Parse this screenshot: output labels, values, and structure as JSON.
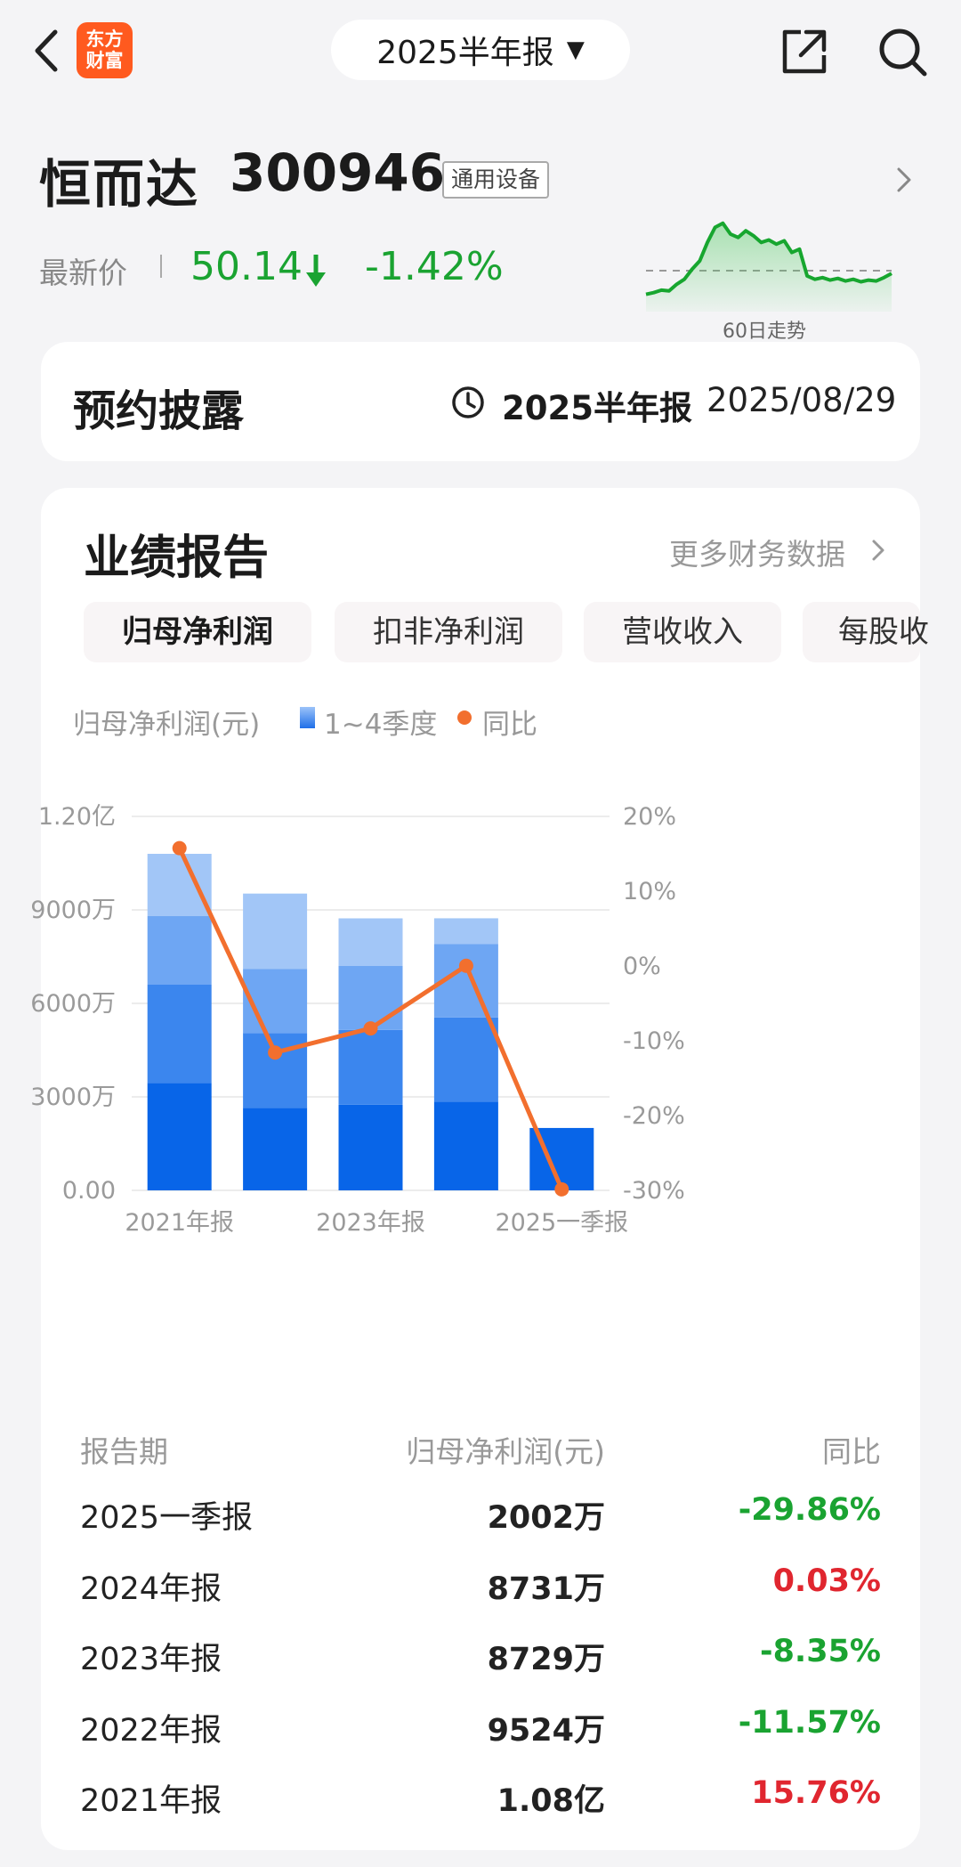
{
  "topbar": {
    "logo_text": "东方\n财富",
    "logo_line1": "东方",
    "logo_line2": "财富",
    "period_selector": "2025半年报",
    "caret": "▼"
  },
  "stock": {
    "name": "恒而达",
    "code": "300946",
    "industry": "通用设备",
    "price_label": "最新价",
    "price": "50.14",
    "change": "-1.42%",
    "sparkline_label": "60日走势",
    "sparkline_trend": [
      0.1,
      0.12,
      0.15,
      0.14,
      0.22,
      0.28,
      0.4,
      0.5,
      0.72,
      0.9,
      0.95,
      0.82,
      0.78,
      0.86,
      0.8,
      0.72,
      0.75,
      0.7,
      0.74,
      0.6,
      0.64,
      0.32,
      0.28,
      0.3,
      0.27,
      0.29,
      0.26,
      0.28,
      0.25,
      0.27,
      0.26,
      0.3,
      0.35
    ]
  },
  "disclosure": {
    "title": "预约披露",
    "period": "2025半年报",
    "date": "2025/08/29"
  },
  "performance": {
    "title": "业绩报告",
    "more_link": "更多财务数据",
    "tabs": [
      {
        "label": "归母净利润",
        "active": true
      },
      {
        "label": "扣非净利润",
        "active": false
      },
      {
        "label": "营收收入",
        "active": false
      },
      {
        "label": "每股收",
        "active": false
      }
    ],
    "legend_label": "归母净利润(元)",
    "legend_bar": "1~4季度",
    "legend_line": "同比"
  },
  "chart_data": {
    "type": "bar",
    "stacked": true,
    "categories": [
      "2021年报",
      "2022年报",
      "2023年报",
      "2024年报",
      "2025一季报"
    ],
    "x_tick_labels": [
      "2021年报",
      "",
      "2023年报",
      "",
      "2025一季报"
    ],
    "series": [
      {
        "values": [
          3450,
          2650,
          2750,
          2850,
          2002
        ]
      },
      {
        "values": [
          3150,
          2400,
          2400,
          2700,
          0
        ]
      },
      {
        "values": [
          2200,
          2050,
          2050,
          2350,
          0
        ]
      },
      {
        "values": [
          2000,
          2424,
          1529,
          831,
          0
        ]
      }
    ],
    "totals_wan": [
      10800,
      9524,
      8729,
      8731,
      2002
    ],
    "line": {
      "values": [
        15.76,
        -11.57,
        -8.35,
        0.03,
        -29.86
      ]
    },
    "y_left": {
      "range": [
        0,
        12000
      ],
      "ticks": [
        "0.00",
        "3000万",
        "6000万",
        "9000万",
        "1.20亿"
      ]
    },
    "y_right": {
      "range": [
        -30,
        20
      ],
      "ticks": [
        "-30%",
        "-20%",
        "-10%",
        "0%",
        "10%",
        "20%"
      ]
    },
    "colors": [
      "#0865e8",
      "#3b86ee",
      "#6ea6f3",
      "#a2c6f7"
    ],
    "line_color": "#f26f2e",
    "grid": true
  },
  "table": {
    "headers": {
      "period": "报告期",
      "value": "归母净利润(元)",
      "yoy": "同比"
    },
    "rows": [
      {
        "period": "2025一季报",
        "value": "2002万",
        "yoy": "-29.86%",
        "dir": "down"
      },
      {
        "period": "2024年报",
        "value": "8731万",
        "yoy": "0.03%",
        "dir": "up"
      },
      {
        "period": "2023年报",
        "value": "8729万",
        "yoy": "-8.35%",
        "dir": "down"
      },
      {
        "period": "2022年报",
        "value": "9524万",
        "yoy": "-11.57%",
        "dir": "down"
      },
      {
        "period": "2021年报",
        "value": "1.08亿",
        "yoy": "15.76%",
        "dir": "up"
      }
    ]
  },
  "colors": {
    "up": "#e0262f",
    "down": "#1aa331",
    "accent": "#ff5a1f"
  }
}
